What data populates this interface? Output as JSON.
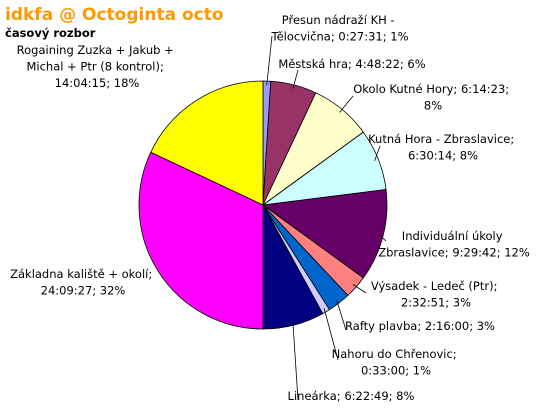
{
  "chart_data": {
    "type": "pie",
    "title": "idkfa @ Octoginta octo",
    "subtitle": "časový rozbor",
    "categories": [
      "Přesun nádraží KH - Tělocvična; 0:27:31; 1%",
      "Městská hra; 4:48:22; 6%",
      "Okolo Kutné Hory; 6:14:23; 8%",
      "Kutná Hora - Zbraslavice; 6:30:14; 8%",
      "Individuální úkoly Zbraslavice; 9:29:42; 12%",
      "Výsadek - Ledeč (Ptr); 2:32:51; 3%",
      "Rafty plavba; 2:16:00; 3%",
      "Nahoru do Chřenovic; 0:33:00; 1%",
      "Lineárka; 6:22:49; 8%",
      "Základna kaliště + okolí; 24:09:27; 32%",
      "Rogaining Zuzka + Jakub + Michal + Ptr (8 kontrol); 14:04:15; 18%"
    ],
    "values": [
      1,
      6,
      8,
      8,
      12,
      3,
      3,
      1,
      8,
      32,
      18
    ],
    "colors": [
      "#9999ff",
      "#993366",
      "#ffffcc",
      "#ccffff",
      "#660066",
      "#ff8080",
      "#0066cc",
      "#ccccff",
      "#000080",
      "#ff00ff",
      "#ffff00"
    ]
  }
}
